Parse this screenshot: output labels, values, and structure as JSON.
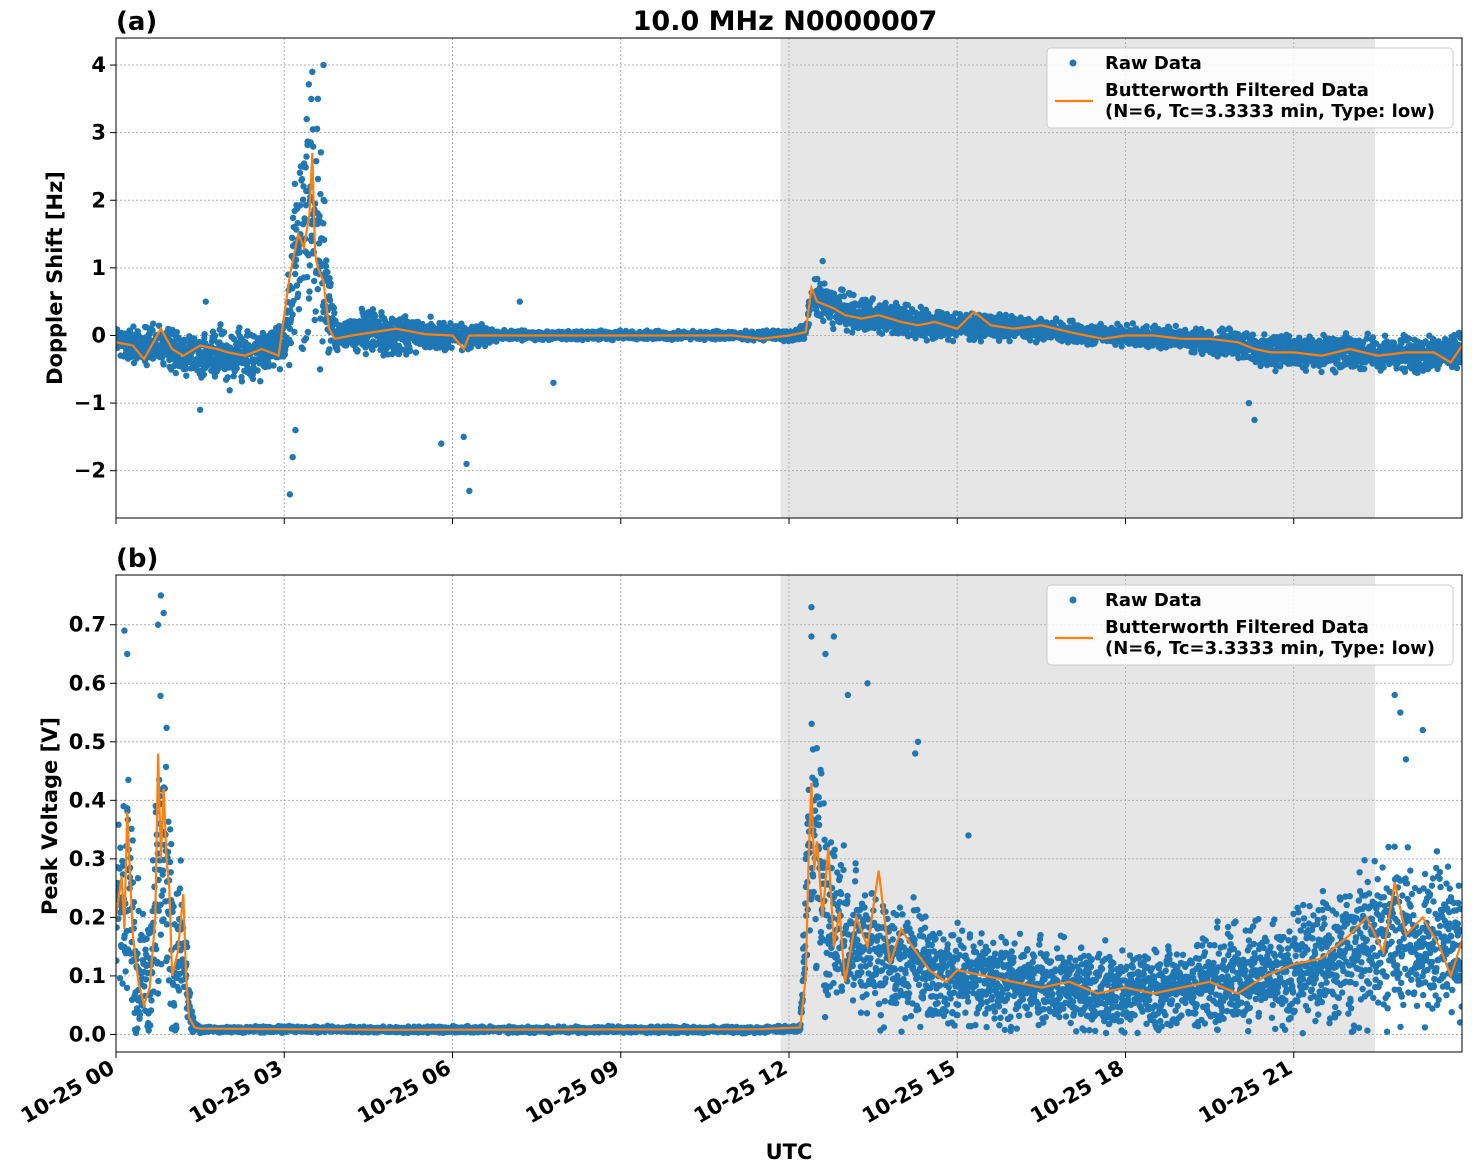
{
  "figure": {
    "title": "10.0 MHz N0000007",
    "xlabel": "UTC"
  },
  "chart_data": [
    {
      "panel_tag": "(a)",
      "type": "scatter",
      "ylabel": "Doppler Shift [Hz]",
      "x_range_hours": [
        0,
        24
      ],
      "ylim": [
        -2.7,
        4.4
      ],
      "yticks": [
        -2,
        -1,
        0,
        1,
        2,
        3,
        4
      ],
      "ytick_labels": [
        "−2",
        "−1",
        "0",
        "1",
        "2",
        "3",
        "4"
      ],
      "grid": true,
      "legend_position": "top-right",
      "shaded_interval_hours": [
        11.85,
        22.45
      ],
      "series": [
        {
          "name": "Raw Data",
          "kind": "points",
          "color": "#1f77b4",
          "profile": [
            [
              0,
              -0.1
            ],
            [
              0.5,
              -0.15
            ],
            [
              1,
              -0.2
            ],
            [
              1.5,
              -0.3
            ],
            [
              2,
              -0.3
            ],
            [
              2.5,
              -0.3
            ],
            [
              3,
              -0.1
            ],
            [
              3.2,
              1.2
            ],
            [
              3.5,
              2.0
            ],
            [
              3.7,
              1.0
            ],
            [
              3.9,
              0.0
            ],
            [
              4.5,
              0.05
            ],
            [
              5,
              0.0
            ],
            [
              6,
              0.0
            ],
            [
              7,
              0.0
            ],
            [
              8,
              0.0
            ],
            [
              9,
              0.0
            ],
            [
              10,
              0.0
            ],
            [
              11,
              0.0
            ],
            [
              12,
              0.0
            ],
            [
              12.3,
              0.05
            ],
            [
              12.4,
              0.6
            ],
            [
              12.8,
              0.4
            ],
            [
              13.5,
              0.3
            ],
            [
              14,
              0.2
            ],
            [
              15,
              0.15
            ],
            [
              16,
              0.1
            ],
            [
              17,
              0.05
            ],
            [
              18,
              0.0
            ],
            [
              19,
              -0.05
            ],
            [
              20,
              -0.15
            ],
            [
              21,
              -0.25
            ],
            [
              22,
              -0.25
            ],
            [
              23,
              -0.3
            ],
            [
              24,
              -0.25
            ]
          ],
          "spread": [
            [
              0,
              0.25
            ],
            [
              1,
              0.3
            ],
            [
              2,
              0.4
            ],
            [
              3,
              0.3
            ],
            [
              3.2,
              1.5
            ],
            [
              3.5,
              2.0
            ],
            [
              3.8,
              0.8
            ],
            [
              4,
              0.15
            ],
            [
              4.5,
              0.35
            ],
            [
              5.5,
              0.25
            ],
            [
              6.5,
              0.15
            ],
            [
              7,
              0.06
            ],
            [
              11.5,
              0.06
            ],
            [
              12.3,
              0.1
            ],
            [
              12.5,
              0.3
            ],
            [
              13,
              0.25
            ],
            [
              15,
              0.2
            ],
            [
              17,
              0.15
            ],
            [
              19,
              0.15
            ],
            [
              20.5,
              0.25
            ],
            [
              24,
              0.25
            ]
          ],
          "outliers": [
            [
              3.1,
              -2.35
            ],
            [
              3.15,
              -1.8
            ],
            [
              3.2,
              -1.4
            ],
            [
              3.5,
              3.9
            ],
            [
              3.6,
              3.5
            ],
            [
              3.7,
              4.0
            ],
            [
              3.4,
              3.2
            ],
            [
              6.2,
              -1.5
            ],
            [
              6.3,
              -2.3
            ],
            [
              6.25,
              -1.9
            ],
            [
              5.8,
              -1.6
            ],
            [
              1.5,
              -1.1
            ],
            [
              20.3,
              -1.25
            ],
            [
              20.2,
              -1.0
            ],
            [
              12.6,
              1.1
            ],
            [
              7.2,
              0.5
            ],
            [
              7.8,
              -0.7
            ],
            [
              1.6,
              0.5
            ]
          ]
        },
        {
          "name": "Butterworth Filtered Data\n(N=6, Tc=3.3333 min, Type: low)",
          "kind": "line",
          "color": "#ff7f0e",
          "x": [
            0,
            0.3,
            0.5,
            0.8,
            1.0,
            1.2,
            1.5,
            1.8,
            2.0,
            2.3,
            2.6,
            2.9,
            3.1,
            3.25,
            3.35,
            3.45,
            3.5,
            3.55,
            3.6,
            3.7,
            3.8,
            3.9,
            4.2,
            4.6,
            5.0,
            5.5,
            6.0,
            6.2,
            6.3,
            6.5,
            7,
            8,
            9,
            10,
            11,
            11.5,
            12.0,
            12.3,
            12.4,
            12.5,
            12.8,
            13.0,
            13.3,
            13.6,
            14.0,
            14.3,
            14.6,
            15.0,
            15.3,
            15.6,
            16.0,
            16.5,
            17.0,
            17.3,
            17.6,
            18.0,
            18.5,
            19.0,
            19.5,
            20.0,
            20.3,
            20.6,
            21.0,
            21.5,
            22.0,
            22.5,
            23.0,
            23.5,
            23.8,
            24.0
          ],
          "y": [
            -0.1,
            -0.15,
            -0.35,
            0.1,
            -0.2,
            -0.3,
            -0.15,
            -0.2,
            -0.25,
            -0.3,
            -0.2,
            -0.3,
            0.9,
            1.5,
            1.3,
            1.8,
            2.7,
            1.2,
            1.0,
            0.8,
            0.1,
            -0.05,
            0.0,
            0.05,
            0.1,
            0.02,
            0.0,
            -0.2,
            0.0,
            0.0,
            0.0,
            0.0,
            0.0,
            0.0,
            0.0,
            -0.05,
            0.0,
            0.05,
            0.7,
            0.5,
            0.4,
            0.3,
            0.25,
            0.3,
            0.2,
            0.15,
            0.2,
            0.1,
            0.35,
            0.15,
            0.1,
            0.15,
            0.05,
            0.0,
            -0.05,
            0.0,
            0.0,
            -0.05,
            -0.05,
            -0.1,
            -0.2,
            -0.25,
            -0.25,
            -0.3,
            -0.2,
            -0.3,
            -0.25,
            -0.25,
            -0.4,
            -0.15
          ]
        }
      ]
    },
    {
      "panel_tag": "(b)",
      "type": "scatter",
      "ylabel": "Peak Voltage [V]",
      "x_range_hours": [
        0,
        24
      ],
      "ylim": [
        -0.03,
        0.785
      ],
      "yticks": [
        0.0,
        0.1,
        0.2,
        0.3,
        0.4,
        0.5,
        0.6,
        0.7
      ],
      "ytick_labels": [
        "0.0",
        "0.1",
        "0.2",
        "0.3",
        "0.4",
        "0.5",
        "0.6",
        "0.7"
      ],
      "xticks_hours": [
        0,
        3,
        6,
        9,
        12,
        15,
        18,
        21
      ],
      "xtick_labels": [
        "10-25 00",
        "10-25 03",
        "10-25 06",
        "10-25 09",
        "10-25 12",
        "10-25 15",
        "10-25 18",
        "10-25 21"
      ],
      "grid": true,
      "legend_position": "top-right",
      "shaded_interval_hours": [
        11.85,
        22.45
      ],
      "series": [
        {
          "name": "Raw Data",
          "kind": "points",
          "color": "#1f77b4",
          "profile": [
            [
              0,
              0.2
            ],
            [
              0.2,
              0.25
            ],
            [
              0.4,
              0.1
            ],
            [
              0.6,
              0.1
            ],
            [
              0.8,
              0.35
            ],
            [
              0.9,
              0.3
            ],
            [
              1.0,
              0.12
            ],
            [
              1.2,
              0.15
            ],
            [
              1.35,
              0.02
            ],
            [
              1.5,
              0.008
            ],
            [
              3,
              0.009
            ],
            [
              5,
              0.008
            ],
            [
              11.5,
              0.008
            ],
            [
              12.2,
              0.01
            ],
            [
              12.4,
              0.35
            ],
            [
              12.7,
              0.2
            ],
            [
              13,
              0.15
            ],
            [
              14,
              0.12
            ],
            [
              15,
              0.1
            ],
            [
              16,
              0.09
            ],
            [
              17,
              0.08
            ],
            [
              18,
              0.07
            ],
            [
              19,
              0.08
            ],
            [
              20,
              0.09
            ],
            [
              21,
              0.11
            ],
            [
              22,
              0.14
            ],
            [
              23,
              0.17
            ],
            [
              24,
              0.16
            ]
          ],
          "spread": [
            [
              0,
              0.15
            ],
            [
              0.3,
              0.2
            ],
            [
              0.5,
              0.08
            ],
            [
              0.8,
              0.25
            ],
            [
              1.1,
              0.15
            ],
            [
              1.3,
              0.05
            ],
            [
              1.4,
              0.005
            ],
            [
              12.2,
              0.005
            ],
            [
              12.4,
              0.25
            ],
            [
              13,
              0.12
            ],
            [
              14,
              0.1
            ],
            [
              15,
              0.08
            ],
            [
              17,
              0.07
            ],
            [
              19,
              0.07
            ],
            [
              21,
              0.1
            ],
            [
              22.5,
              0.14
            ],
            [
              24,
              0.12
            ]
          ],
          "outliers": [
            [
              0.15,
              0.69
            ],
            [
              0.2,
              0.65
            ],
            [
              0.8,
              0.75
            ],
            [
              0.85,
              0.72
            ],
            [
              0.75,
              0.7
            ],
            [
              12.4,
              0.73
            ],
            [
              12.4,
              0.68
            ],
            [
              12.8,
              0.68
            ],
            [
              12.65,
              0.65
            ],
            [
              13.05,
              0.58
            ],
            [
              13.4,
              0.6
            ],
            [
              14.3,
              0.5
            ],
            [
              14.25,
              0.48
            ],
            [
              15.2,
              0.34
            ],
            [
              22.8,
              0.58
            ],
            [
              22.9,
              0.55
            ],
            [
              23.3,
              0.52
            ],
            [
              23.0,
              0.47
            ]
          ]
        },
        {
          "name": "Butterworth Filtered Data\n(N=6, Tc=3.3333 min, Type: low)",
          "kind": "line",
          "color": "#ff7f0e",
          "x": [
            0,
            0.1,
            0.15,
            0.2,
            0.3,
            0.4,
            0.5,
            0.6,
            0.7,
            0.75,
            0.8,
            0.85,
            0.9,
            0.95,
            1.0,
            1.1,
            1.2,
            1.25,
            1.3,
            1.4,
            1.5,
            3,
            5,
            11.5,
            12.2,
            12.3,
            12.35,
            12.4,
            12.45,
            12.5,
            12.6,
            12.7,
            12.8,
            12.9,
            13.0,
            13.2,
            13.4,
            13.6,
            13.8,
            14.0,
            14.2,
            14.5,
            14.8,
            15.0,
            15.5,
            16.0,
            16.5,
            17.0,
            17.5,
            18.0,
            18.5,
            19.0,
            19.5,
            20.0,
            20.5,
            21.0,
            21.5,
            22.0,
            22.3,
            22.6,
            22.8,
            23.0,
            23.3,
            23.6,
            23.8,
            24.0
          ],
          "y": [
            0.2,
            0.27,
            0.18,
            0.38,
            0.17,
            0.09,
            0.05,
            0.08,
            0.2,
            0.48,
            0.3,
            0.42,
            0.3,
            0.25,
            0.1,
            0.14,
            0.24,
            0.1,
            0.03,
            0.012,
            0.01,
            0.009,
            0.008,
            0.009,
            0.012,
            0.1,
            0.3,
            0.43,
            0.28,
            0.33,
            0.2,
            0.32,
            0.15,
            0.21,
            0.09,
            0.2,
            0.15,
            0.28,
            0.12,
            0.18,
            0.15,
            0.11,
            0.09,
            0.11,
            0.1,
            0.09,
            0.08,
            0.09,
            0.07,
            0.08,
            0.07,
            0.08,
            0.09,
            0.07,
            0.1,
            0.12,
            0.13,
            0.17,
            0.2,
            0.14,
            0.26,
            0.17,
            0.2,
            0.15,
            0.1,
            0.16
          ]
        }
      ]
    }
  ]
}
